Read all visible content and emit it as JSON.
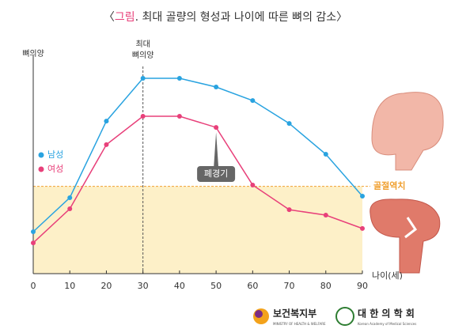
{
  "chart_data": {
    "type": "line",
    "title_parts": [
      "〈",
      "그림",
      ". 최대 골량의 형성과 나이에 따른 뼈의 감소〉"
    ],
    "y_label": "뼈의양",
    "x_label": "나이(세)",
    "x": [
      0,
      10,
      20,
      30,
      40,
      50,
      60,
      70,
      80,
      90
    ],
    "xlim": [
      0,
      90
    ],
    "xticks": [
      0,
      10,
      20,
      30,
      40,
      50,
      60,
      70,
      80,
      90
    ],
    "ylim": [
      0,
      100
    ],
    "series": [
      {
        "name": "남성",
        "color": "#29a3e0",
        "values": [
          19.2,
          34.8,
          69.9,
          89.5,
          89.5,
          85.5,
          79.3,
          68.8,
          54.7,
          35.5
        ]
      },
      {
        "name": "여성",
        "color": "#e8407a",
        "values": [
          14.1,
          29.7,
          59.1,
          72.1,
          72.1,
          67.0,
          40.6,
          29.3,
          26.8,
          20.7
        ]
      }
    ],
    "threshold": {
      "label": "골절역치",
      "value": 40,
      "color": "#f0a030"
    },
    "peak": {
      "label": [
        "최대",
        "뼈의양"
      ],
      "x": 30
    },
    "menopause": {
      "label": "폐경기",
      "x": 50
    }
  },
  "logos": [
    {
      "name": "보건복지부",
      "subtitle": "MINISTRY OF HEALTH & WELFARE"
    },
    {
      "name": "대 한 의 학 회",
      "subtitle": "Korean Academy of Medical Sciences"
    }
  ]
}
